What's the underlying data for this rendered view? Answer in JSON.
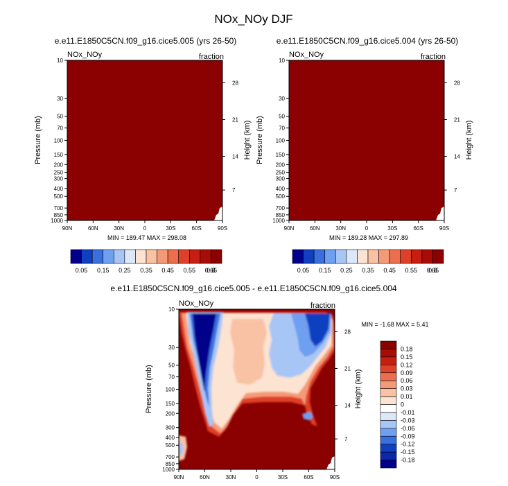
{
  "figure": {
    "title": "NOx_NOy DJF"
  },
  "chart_data": [
    {
      "type": "heatmap",
      "title": "e.e11.E1850C5CN.f09_g16.cice5.005 (yrs 26-50)",
      "left_label": "NOx_NOy",
      "right_label": "fraction",
      "ylabel": "Pressure (mb)",
      "y2label": "Height (km)",
      "xticks": [
        "90N",
        "60N",
        "30N",
        "0",
        "30S",
        "60S",
        "90S"
      ],
      "yticks": [
        "10",
        "30",
        "50",
        "70",
        "100",
        "150",
        "200",
        "250",
        "300",
        "400",
        "500",
        "700",
        "850",
        "1000"
      ],
      "y2ticks": [
        "28",
        "21",
        "14",
        "7"
      ],
      "stats": "MIN = 189.47  MAX = 298.08",
      "fill_color": "#8b0000"
    },
    {
      "type": "heatmap",
      "title": "e.e11.E1850C5CN.f09_g16.cice5.004 (yrs 26-50)",
      "left_label": "NOx_NOy",
      "right_label": "fraction",
      "ylabel": "Pressure (mb)",
      "y2label": "Height (km)",
      "xticks": [
        "90N",
        "60N",
        "30N",
        "0",
        "30S",
        "60S",
        "90S"
      ],
      "yticks": [
        "10",
        "30",
        "50",
        "70",
        "100",
        "150",
        "200",
        "250",
        "300",
        "400",
        "500",
        "700",
        "850",
        "1000"
      ],
      "y2ticks": [
        "28",
        "21",
        "14",
        "7"
      ],
      "stats": "MIN = 189.28  MAX = 297.89",
      "fill_color": "#8b0000"
    },
    {
      "type": "heatmap",
      "title": "e.e11.E1850C5CN.f09_g16.cice5.005 - e.e11.E1850C5CN.f09_g16.cice5.004",
      "left_label": "NOx_NOy",
      "right_label": "fraction",
      "ylabel": "Pressure (mb)",
      "y2label": "Height (km)",
      "xticks": [
        "90N",
        "60N",
        "30N",
        "0",
        "30S",
        "60S",
        "90S"
      ],
      "yticks": [
        "10",
        "30",
        "50",
        "70",
        "100",
        "150",
        "200",
        "300",
        "400",
        "500",
        "700",
        "850",
        "1000"
      ],
      "y2ticks": [
        "28",
        "21",
        "14",
        "7"
      ],
      "stats": "MIN =  -1.68  MAX =   5.41",
      "fill_color": "#8b0000"
    }
  ],
  "colorbar_top": {
    "labels": [
      "0.05",
      "0.15",
      "0.25",
      "0.35",
      "0.45",
      "0.55",
      "0.65",
      "0.8"
    ],
    "colors": [
      "#00008b",
      "#1040c0",
      "#3a6fe0",
      "#6e9ff0",
      "#a8c6f5",
      "#dce8fa",
      "#fde3d2",
      "#f9c2a4",
      "#f49a78",
      "#ec6e4d",
      "#df4128",
      "#c61e10",
      "#a80c06",
      "#8b0000"
    ]
  },
  "colorbar_diff": {
    "labels": [
      "0.18",
      "0.15",
      "0.12",
      "0.09",
      "0.06",
      "0.03",
      "0.01",
      "0",
      "-0.01",
      "-0.03",
      "-0.06",
      "-0.09",
      "-0.12",
      "-0.15",
      "-0.18"
    ],
    "colors": [
      "#8b0000",
      "#a80c06",
      "#c61e10",
      "#df4128",
      "#ec6e4d",
      "#f49a78",
      "#f9c2a4",
      "#fde3d2",
      "#ffffff",
      "#dce8fa",
      "#a8c6f5",
      "#6e9ff0",
      "#3a6fe0",
      "#1040c0",
      "#0a28a8",
      "#00008b"
    ]
  }
}
